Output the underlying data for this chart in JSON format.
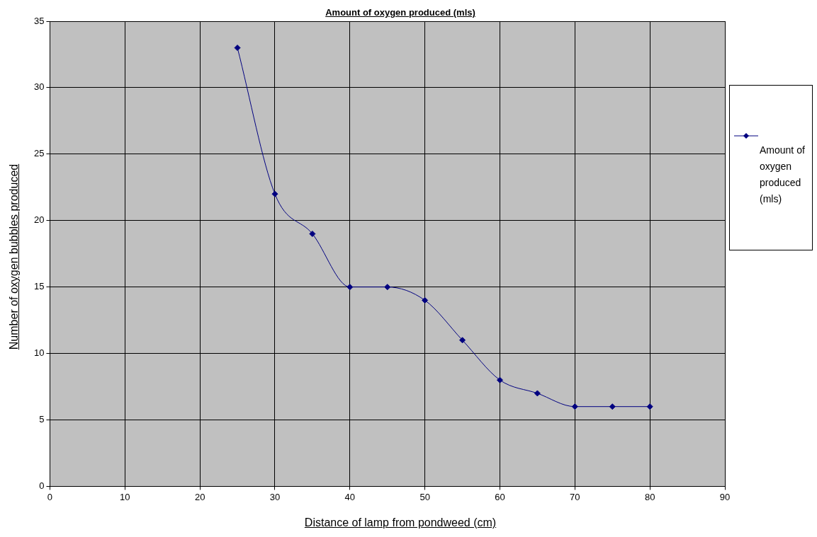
{
  "chart_data": {
    "type": "line",
    "title": "Amount of oxygen produced (mls)",
    "xlabel": "Distance of lamp from pondweed (cm)",
    "ylabel": "Number of oxygen bubbles produced",
    "x": [
      25,
      30,
      35,
      40,
      45,
      50,
      55,
      60,
      65,
      70,
      75,
      80
    ],
    "series": [
      {
        "name": "Amount of oxygen produced (mls)",
        "color": "#000080",
        "values": [
          33,
          22,
          19,
          15,
          15,
          14,
          11,
          8,
          7,
          6,
          6,
          6
        ]
      }
    ],
    "xlim": [
      0,
      90
    ],
    "xticks": [
      0,
      10,
      20,
      30,
      40,
      50,
      60,
      70,
      80,
      90
    ],
    "ylim": [
      0,
      35
    ],
    "yticks": [
      0,
      5,
      10,
      15,
      20,
      25,
      30,
      35
    ],
    "grid": true,
    "legend": "right",
    "marker": "diamond",
    "line_style": "solid"
  }
}
